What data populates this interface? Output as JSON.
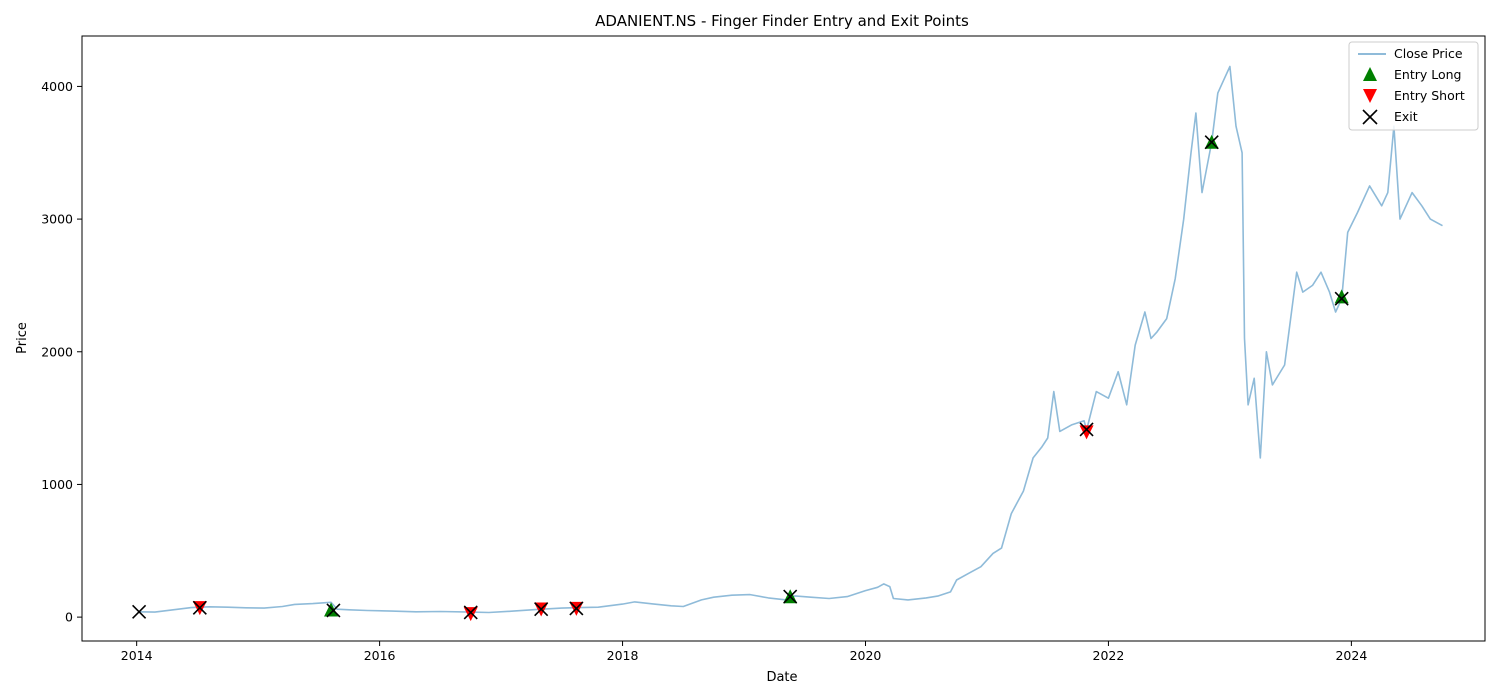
{
  "chart_data": {
    "type": "line",
    "title": "ADANIENT.NS - Finger Finder Entry and Exit Points",
    "xlabel": "Date",
    "ylabel": "Price",
    "xlim": [
      2013.55,
      2025.1
    ],
    "ylim": [
      -180,
      4380
    ],
    "x_ticks": [
      2014,
      2016,
      2018,
      2020,
      2022,
      2024
    ],
    "x_tick_labels": [
      "2014",
      "2016",
      "2018",
      "2020",
      "2022",
      "2024"
    ],
    "y_ticks": [
      0,
      1000,
      2000,
      3000,
      4000
    ],
    "y_tick_labels": [
      "0",
      "1000",
      "2000",
      "3000",
      "4000"
    ],
    "grid": false,
    "legend_position": "top-right",
    "colors": {
      "close_price": "#1f77b4",
      "entry_long": "#008000",
      "entry_short": "#ff0000",
      "exit": "#000000"
    },
    "series": [
      {
        "name": "Close Price",
        "kind": "line",
        "points": [
          [
            2014.02,
            40
          ],
          [
            2014.15,
            38
          ],
          [
            2014.3,
            55
          ],
          [
            2014.45,
            72
          ],
          [
            2014.6,
            78
          ],
          [
            2014.75,
            75
          ],
          [
            2014.9,
            70
          ],
          [
            2015.05,
            68
          ],
          [
            2015.2,
            80
          ],
          [
            2015.3,
            96
          ],
          [
            2015.45,
            102
          ],
          [
            2015.6,
            112
          ],
          [
            2015.65,
            60
          ],
          [
            2015.75,
            55
          ],
          [
            2015.9,
            50
          ],
          [
            2016.1,
            45
          ],
          [
            2016.3,
            40
          ],
          [
            2016.5,
            42
          ],
          [
            2016.75,
            38
          ],
          [
            2016.9,
            35
          ],
          [
            2017.1,
            45
          ],
          [
            2017.3,
            58
          ],
          [
            2017.5,
            68
          ],
          [
            2017.65,
            72
          ],
          [
            2017.8,
            75
          ],
          [
            2018.0,
            98
          ],
          [
            2018.1,
            115
          ],
          [
            2018.25,
            100
          ],
          [
            2018.4,
            85
          ],
          [
            2018.5,
            80
          ],
          [
            2018.65,
            130
          ],
          [
            2018.75,
            150
          ],
          [
            2018.9,
            165
          ],
          [
            2019.05,
            170
          ],
          [
            2019.2,
            145
          ],
          [
            2019.35,
            130
          ],
          [
            2019.42,
            160
          ],
          [
            2019.55,
            150
          ],
          [
            2019.7,
            140
          ],
          [
            2019.85,
            155
          ],
          [
            2020.0,
            200
          ],
          [
            2020.1,
            225
          ],
          [
            2020.15,
            250
          ],
          [
            2020.2,
            230
          ],
          [
            2020.23,
            140
          ],
          [
            2020.35,
            130
          ],
          [
            2020.5,
            145
          ],
          [
            2020.6,
            160
          ],
          [
            2020.7,
            190
          ],
          [
            2020.75,
            280
          ],
          [
            2020.85,
            330
          ],
          [
            2020.95,
            380
          ],
          [
            2021.05,
            480
          ],
          [
            2021.12,
            520
          ],
          [
            2021.2,
            780
          ],
          [
            2021.3,
            950
          ],
          [
            2021.38,
            1200
          ],
          [
            2021.45,
            1280
          ],
          [
            2021.5,
            1350
          ],
          [
            2021.55,
            1700
          ],
          [
            2021.6,
            1400
          ],
          [
            2021.7,
            1450
          ],
          [
            2021.8,
            1480
          ],
          [
            2021.82,
            1410
          ],
          [
            2021.9,
            1700
          ],
          [
            2022.0,
            1650
          ],
          [
            2022.08,
            1850
          ],
          [
            2022.15,
            1600
          ],
          [
            2022.22,
            2050
          ],
          [
            2022.3,
            2300
          ],
          [
            2022.35,
            2100
          ],
          [
            2022.4,
            2150
          ],
          [
            2022.48,
            2250
          ],
          [
            2022.55,
            2550
          ],
          [
            2022.62,
            3000
          ],
          [
            2022.68,
            3500
          ],
          [
            2022.72,
            3800
          ],
          [
            2022.77,
            3200
          ],
          [
            2022.85,
            3580
          ],
          [
            2022.9,
            3950
          ],
          [
            2022.95,
            4050
          ],
          [
            2023.0,
            4150
          ],
          [
            2023.05,
            3700
          ],
          [
            2023.1,
            3500
          ],
          [
            2023.12,
            2100
          ],
          [
            2023.15,
            1600
          ],
          [
            2023.2,
            1800
          ],
          [
            2023.25,
            1200
          ],
          [
            2023.3,
            2000
          ],
          [
            2023.35,
            1750
          ],
          [
            2023.45,
            1900
          ],
          [
            2023.55,
            2600
          ],
          [
            2023.6,
            2450
          ],
          [
            2023.68,
            2500
          ],
          [
            2023.75,
            2600
          ],
          [
            2023.82,
            2450
          ],
          [
            2023.87,
            2300
          ],
          [
            2023.92,
            2400
          ],
          [
            2023.97,
            2900
          ],
          [
            2024.05,
            3050
          ],
          [
            2024.15,
            3250
          ],
          [
            2024.25,
            3100
          ],
          [
            2024.3,
            3200
          ],
          [
            2024.35,
            3700
          ],
          [
            2024.4,
            3000
          ],
          [
            2024.5,
            3200
          ],
          [
            2024.58,
            3100
          ],
          [
            2024.65,
            3000
          ],
          [
            2024.75,
            2950
          ]
        ]
      },
      {
        "name": "Entry Long",
        "kind": "marker",
        "marker": "triangle-up",
        "points": [
          [
            2015.6,
            50
          ],
          [
            2019.38,
            150
          ],
          [
            2022.85,
            3575
          ],
          [
            2023.92,
            2410
          ]
        ]
      },
      {
        "name": "Entry Short",
        "kind": "marker",
        "marker": "triangle-down",
        "points": [
          [
            2014.52,
            75
          ],
          [
            2016.75,
            30
          ],
          [
            2017.33,
            65
          ],
          [
            2017.62,
            70
          ],
          [
            2021.82,
            1400
          ]
        ]
      },
      {
        "name": "Exit",
        "kind": "marker",
        "marker": "x",
        "points": [
          [
            2014.02,
            40
          ],
          [
            2014.52,
            70
          ],
          [
            2015.62,
            50
          ],
          [
            2016.75,
            35
          ],
          [
            2017.33,
            60
          ],
          [
            2017.62,
            65
          ],
          [
            2019.38,
            155
          ],
          [
            2021.82,
            1415
          ],
          [
            2022.85,
            3580
          ],
          [
            2023.92,
            2400
          ]
        ]
      }
    ]
  }
}
